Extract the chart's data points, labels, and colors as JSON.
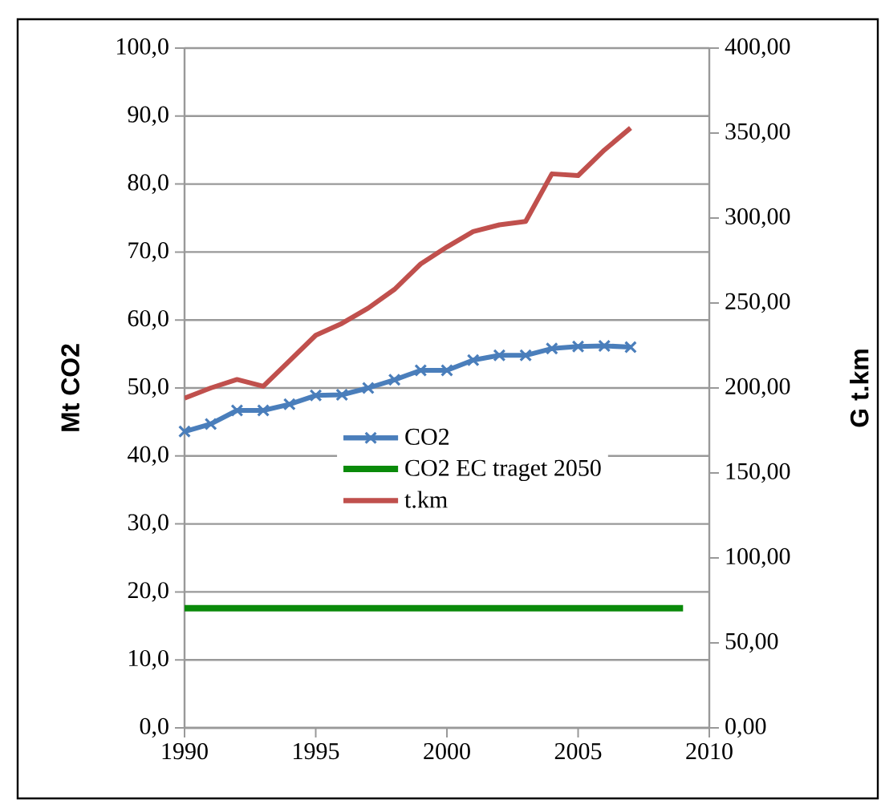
{
  "chart_data": {
    "type": "line",
    "ylabel": "Mt CO2",
    "y2label": "G t.km",
    "x": [
      1990,
      1991,
      1992,
      1993,
      1994,
      1995,
      1996,
      1997,
      1998,
      1999,
      2000,
      2001,
      2002,
      2003,
      2004,
      2005,
      2006,
      2007
    ],
    "series": [
      {
        "name": "CO2",
        "color": "#4a7ebb",
        "marker": "cross",
        "values": [
          43.6,
          44.7,
          46.7,
          46.7,
          47.6,
          48.9,
          49.0,
          50.0,
          51.2,
          52.6,
          52.6,
          54.1,
          54.8,
          54.8,
          55.8,
          56.1,
          56.2,
          56.0
        ]
      },
      {
        "name": "CO2 EC traget 2050",
        "color": "#0a8a0a",
        "marker": "none",
        "x": [
          1990,
          2009
        ],
        "values": [
          17.6,
          17.6
        ]
      },
      {
        "name": "t.km",
        "color": "#c0504d",
        "marker": "none",
        "axis": "y2",
        "values": [
          194,
          200,
          205,
          201,
          216,
          231,
          238,
          247,
          258,
          273,
          283,
          292,
          296,
          298,
          326,
          325,
          340,
          353
        ]
      }
    ],
    "xlim": [
      1990,
      2010
    ],
    "xticks": [
      1990,
      1995,
      2000,
      2005,
      2010
    ],
    "ylim": [
      0,
      100
    ],
    "yticks": [
      {
        "value": 0,
        "label": "0,0"
      },
      {
        "value": 10,
        "label": "10,0"
      },
      {
        "value": 20,
        "label": "20,0"
      },
      {
        "value": 30,
        "label": "30,0"
      },
      {
        "value": 40,
        "label": "40,0"
      },
      {
        "value": 50,
        "label": "50,0"
      },
      {
        "value": 60,
        "label": "60,0"
      },
      {
        "value": 70,
        "label": "70,0"
      },
      {
        "value": 80,
        "label": "80,0"
      },
      {
        "value": 90,
        "label": "90,0"
      },
      {
        "value": 100,
        "label": "100,0"
      }
    ],
    "y2lim": [
      0,
      400
    ],
    "y2ticks": [
      {
        "value": 0,
        "label": "0,00"
      },
      {
        "value": 50,
        "label": "50,00"
      },
      {
        "value": 100,
        "label": "100,00"
      },
      {
        "value": 150,
        "label": "150,00"
      },
      {
        "value": 200,
        "label": "200,00"
      },
      {
        "value": 250,
        "label": "250,00"
      },
      {
        "value": 300,
        "label": "300,00"
      },
      {
        "value": 350,
        "label": "350,00"
      },
      {
        "value": 400,
        "label": "400,00"
      }
    ],
    "grid": "y",
    "legend": "center",
    "line_style": "solid"
  }
}
